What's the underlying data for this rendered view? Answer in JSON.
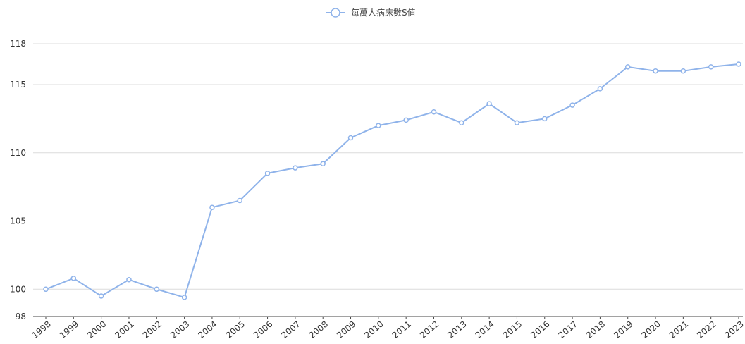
{
  "colors": {
    "series": "#8fb3ea",
    "grid": "#dcdcdc",
    "axis": "#444444"
  },
  "chart_data": {
    "type": "line",
    "title": "",
    "xlabel": "",
    "ylabel": "",
    "legend_position": "top-center",
    "grid": true,
    "x": [
      "1998",
      "1999",
      "2000",
      "2001",
      "2002",
      "2003",
      "2004",
      "2005",
      "2006",
      "2007",
      "2008",
      "2009",
      "2010",
      "2011",
      "2012",
      "2013",
      "2014",
      "2015",
      "2016",
      "2017",
      "2018",
      "2019",
      "2020",
      "2021",
      "2022",
      "2023"
    ],
    "series": [
      {
        "name": "每萬人病床數S值",
        "values": [
          100.0,
          100.8,
          99.5,
          100.7,
          100.0,
          99.4,
          106.0,
          106.5,
          108.5,
          108.9,
          109.2,
          111.1,
          112.0,
          112.4,
          113.0,
          112.2,
          113.6,
          112.2,
          112.5,
          113.5,
          114.7,
          116.3,
          116.0,
          116.0,
          116.3,
          116.5
        ]
      }
    ],
    "ylim": [
      98,
      118
    ],
    "yticks": [
      98,
      100,
      105,
      110,
      115,
      118
    ]
  }
}
